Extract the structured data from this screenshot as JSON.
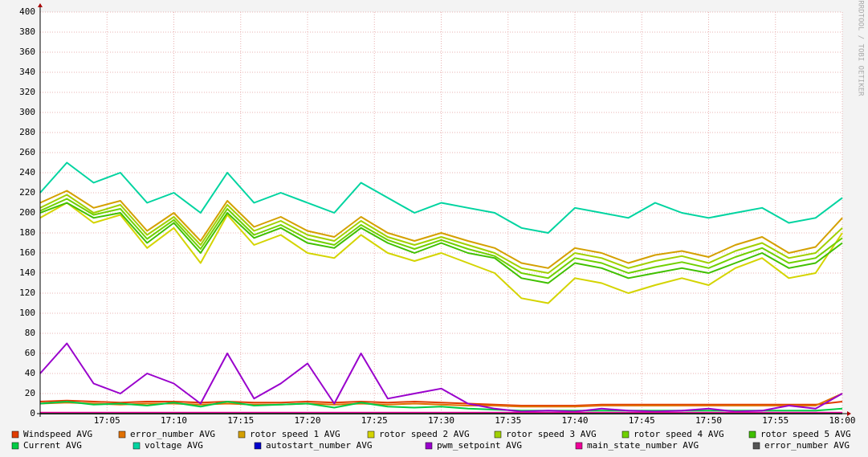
{
  "chart_data": {
    "type": "line",
    "watermark": "RRDTOOL / TOBI OETIKER",
    "x": [
      "17:00",
      "17:02",
      "17:04",
      "17:06",
      "17:08",
      "17:10",
      "17:12",
      "17:14",
      "17:16",
      "17:18",
      "17:20",
      "17:22",
      "17:24",
      "17:26",
      "17:28",
      "17:30",
      "17:32",
      "17:34",
      "17:36",
      "17:38",
      "17:40",
      "17:42",
      "17:44",
      "17:46",
      "17:48",
      "17:50",
      "17:52",
      "17:54",
      "17:56",
      "17:58",
      "18:00"
    ],
    "xlim": [
      "17:00",
      "18:00"
    ],
    "xticks": [
      "17:05",
      "17:10",
      "17:15",
      "17:20",
      "17:25",
      "17:30",
      "17:35",
      "17:40",
      "17:45",
      "17:50",
      "17:55",
      "18:00"
    ],
    "ylim": [
      0,
      400
    ],
    "yticks": [
      0,
      20,
      40,
      60,
      80,
      100,
      120,
      140,
      160,
      180,
      200,
      220,
      240,
      260,
      280,
      300,
      320,
      340,
      360,
      380,
      400
    ],
    "grid": true,
    "series": [
      {
        "name": "Windspeed AVG",
        "color": "#e03c00",
        "values": [
          12,
          13,
          12,
          11,
          12,
          12,
          11,
          12,
          11,
          11,
          12,
          11,
          12,
          11,
          12,
          11,
          10,
          9,
          8,
          8,
          8,
          9,
          9,
          9,
          9,
          9,
          9,
          9,
          9,
          9,
          12
        ]
      },
      {
        "name": "error_number AVG",
        "color": "#e07000",
        "values": [
          10,
          11,
          10,
          9,
          10,
          10,
          9,
          10,
          9,
          9,
          10,
          9,
          10,
          9,
          10,
          9,
          8,
          8,
          7,
          7,
          7,
          8,
          8,
          8,
          8,
          8,
          8,
          8,
          8,
          8,
          20
        ]
      },
      {
        "name": "rotor speed 1 AVG",
        "color": "#d4a000",
        "values": [
          210,
          222,
          205,
          212,
          182,
          200,
          172,
          212,
          186,
          196,
          182,
          176,
          196,
          180,
          172,
          180,
          172,
          165,
          150,
          145,
          165,
          160,
          150,
          158,
          162,
          156,
          168,
          176,
          160,
          166,
          195
        ]
      },
      {
        "name": "rotor speed 2 AVG",
        "color": "#d4d400",
        "values": [
          195,
          210,
          190,
          198,
          165,
          185,
          150,
          198,
          168,
          178,
          160,
          155,
          178,
          160,
          152,
          160,
          150,
          140,
          115,
          110,
          135,
          130,
          120,
          128,
          135,
          128,
          145,
          155,
          135,
          140,
          180
        ]
      },
      {
        "name": "rotor speed 3 AVG",
        "color": "#a0d000",
        "values": [
          205,
          218,
          200,
          208,
          178,
          196,
          168,
          208,
          182,
          192,
          178,
          172,
          192,
          176,
          168,
          176,
          168,
          160,
          145,
          140,
          160,
          155,
          145,
          152,
          157,
          150,
          162,
          170,
          155,
          160,
          185
        ]
      },
      {
        "name": "rotor speed 4 AVG",
        "color": "#70d000",
        "values": [
          202,
          214,
          198,
          204,
          174,
          193,
          164,
          204,
          178,
          188,
          174,
          168,
          188,
          173,
          164,
          173,
          164,
          157,
          140,
          135,
          155,
          150,
          140,
          146,
          151,
          145,
          156,
          165,
          150,
          155,
          175
        ]
      },
      {
        "name": "rotor speed 5 AVG",
        "color": "#40c000",
        "values": [
          200,
          210,
          195,
          200,
          170,
          190,
          160,
          200,
          175,
          185,
          170,
          165,
          185,
          170,
          160,
          170,
          160,
          155,
          135,
          130,
          150,
          145,
          135,
          140,
          145,
          140,
          150,
          160,
          145,
          150,
          170
        ]
      },
      {
        "name": "Current AVG",
        "color": "#00cc44",
        "values": [
          10,
          12,
          9,
          10,
          8,
          11,
          7,
          12,
          8,
          9,
          10,
          6,
          11,
          7,
          6,
          7,
          5,
          4,
          3,
          3,
          3,
          3,
          3,
          3,
          3,
          3,
          3,
          3,
          3,
          3,
          5
        ]
      },
      {
        "name": "voltage AVG",
        "color": "#00d4a0",
        "values": [
          220,
          250,
          230,
          240,
          210,
          220,
          200,
          240,
          210,
          220,
          210,
          200,
          230,
          215,
          200,
          210,
          205,
          200,
          185,
          180,
          205,
          200,
          195,
          210,
          200,
          195,
          200,
          205,
          190,
          195,
          215
        ]
      },
      {
        "name": "autostart_number AVG",
        "color": "#0000cc",
        "values": [
          0,
          0,
          0,
          0,
          0,
          0,
          0,
          0,
          0,
          0,
          0,
          0,
          0,
          0,
          0,
          0,
          0,
          0,
          0,
          0,
          0,
          0,
          0,
          0,
          0,
          0,
          0,
          0,
          0,
          0,
          0
        ]
      },
      {
        "name": "pwm_setpoint AVG",
        "color": "#9900cc",
        "values": [
          40,
          70,
          30,
          20,
          40,
          30,
          10,
          60,
          15,
          30,
          50,
          10,
          60,
          15,
          20,
          25,
          10,
          5,
          2,
          3,
          2,
          5,
          3,
          2,
          3,
          5,
          2,
          3,
          8,
          5,
          20
        ]
      },
      {
        "name": "main_state_number AVG",
        "color": "#ee0099",
        "values": [
          1,
          1,
          1,
          1,
          1,
          1,
          1,
          1,
          1,
          1,
          1,
          1,
          1,
          1,
          1,
          1,
          1,
          1,
          1,
          1,
          1,
          1,
          1,
          1,
          1,
          1,
          1,
          1,
          1,
          1,
          1
        ]
      },
      {
        "name": "error_number AVG",
        "color": "#555555",
        "values": [
          0,
          0,
          0,
          0,
          0,
          0,
          0,
          0,
          0,
          0,
          0,
          0,
          0,
          0,
          0,
          0,
          0,
          0,
          0,
          0,
          0,
          0,
          0,
          0,
          0,
          0,
          0,
          0,
          0,
          0,
          0
        ]
      }
    ]
  }
}
